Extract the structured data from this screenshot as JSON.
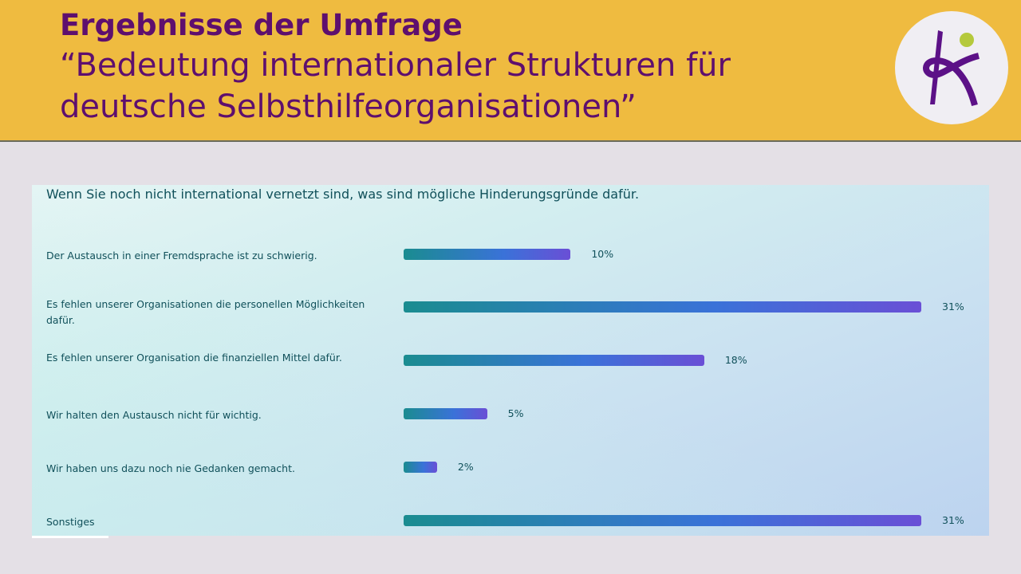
{
  "header": {
    "title_line1": "Ergebnisse der Umfrage",
    "title_line2": "“Bedeutung internationaler Strukturen für",
    "title_line3": "deutsche Selbsthilfeorganisationen”",
    "logo_text": "K"
  },
  "colors": {
    "header_bg": "#efbb40",
    "title": "#5e0f6e",
    "logo_purple": "#5c1187",
    "logo_dot": "#b5c93c",
    "bar_start": "#1a8c90",
    "bar_end": "#6a4fd6"
  },
  "chart_data": {
    "type": "bar",
    "orientation": "horizontal",
    "title": "Wenn Sie noch nicht international vernetzt sind, was sind mögliche Hinderungsgründe dafür.",
    "categories": [
      "Der Austausch in einer Fremdsprache ist zu schwierig.",
      "Es fehlen unserer Organisationen die personellen Möglichkeiten dafür.",
      "Es fehlen unserer Organisation die finanziellen Mittel dafür.",
      "Wir halten den Austausch nicht für wichtig.",
      "Wir haben uns dazu noch nie Gedanken gemacht.",
      "Sonstiges"
    ],
    "values": [
      10,
      31,
      18,
      5,
      2,
      31
    ],
    "labels": [
      "10%",
      "31%",
      "18%",
      "5%",
      "2%",
      "31%"
    ],
    "unit": "%",
    "grid": false
  }
}
